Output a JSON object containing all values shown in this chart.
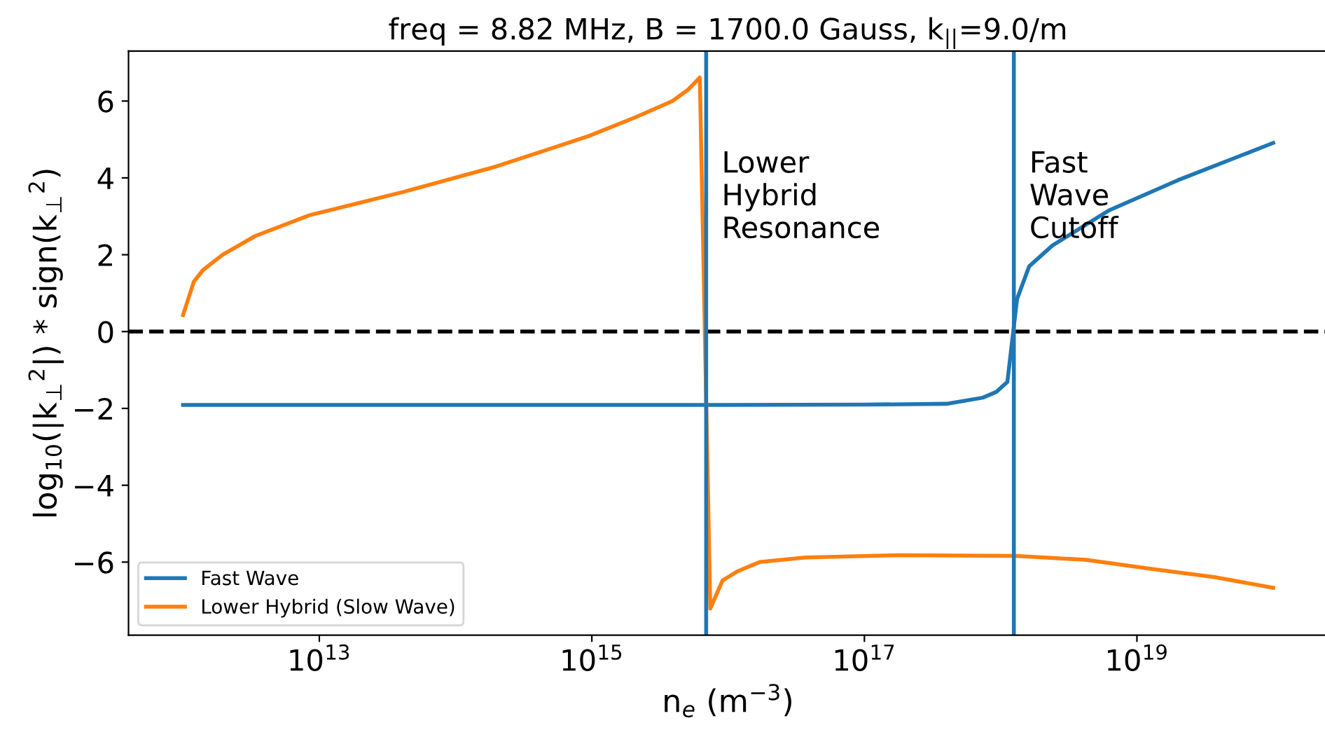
{
  "chart_data": {
    "type": "line",
    "title": "freq = 8.82 MHz, B = 1700.0 Gauss, k$_{||}$=9.0/m",
    "xlabel": "n$_{e}$ (m$^{−3}$)",
    "ylabel": "log$_{10}$(|k$_{⊥}$$^{2}$|) * sign(k$_{⊥}$$^{2}$)",
    "log": "x",
    "xlim": [
      398000000000.0,
      2.51e+20
    ],
    "xticks": [
      {
        "value": 10000000000000.0,
        "label": "10$^{13}$"
      },
      {
        "value": 1000000000000000.0,
        "label": "10$^{15}$"
      },
      {
        "value": 1e+17,
        "label": "10$^{17}$"
      },
      {
        "value": 1e+19,
        "label": "10$^{19}$"
      }
    ],
    "ylim": [
      -7.9,
      7.3
    ],
    "yticks": [
      {
        "value": -6,
        "label": "−6"
      },
      {
        "value": -4,
        "label": "−4"
      },
      {
        "value": -2,
        "label": "−2"
      },
      0,
      2,
      4,
      6
    ],
    "series": [
      {
        "name": "Fast Wave",
        "color": "#1f77b4",
        "x": [
          1000000000000.0,
          100000000000000.0,
          1e+16,
          1e+17,
          2e+17,
          4e+17,
          7.4e+17,
          9.3e+17,
          1.12e+18,
          1.32e+18,
          1.62e+18,
          2.4e+18,
          6.2e+18,
          2e+19,
          1e+20
        ],
        "values": [
          -1.91,
          -1.91,
          -1.91,
          -1.9,
          -1.89,
          -1.88,
          -1.72,
          -1.57,
          -1.31,
          0.85,
          1.7,
          2.24,
          3.15,
          3.94,
          4.91
        ]
      },
      {
        "name": "Lower Hybrid (Slow Wave)",
        "color": "#ff7f0e",
        "x": [
          1000000000000.0,
          1200000000000.0,
          1400000000000.0,
          1950000000000.0,
          3400000000000.0,
          8500000000000.0,
          42000000000000.0,
          200000000000000.0,
          950000000000000.0,
          2100000000000000.0,
          3900000000000000.0,
          5100000000000000.0,
          6200000000000000.0,
          7400000000000000.0,
          9100000000000000.0,
          1.17e+16,
          1.7e+16,
          3.7e+16,
          1.8e+17,
          1.3e+18,
          4.2e+18,
          1.3e+19,
          3.7e+19,
          1e+20
        ],
        "values": [
          0.43,
          1.3,
          1.6,
          2.0,
          2.49,
          3.03,
          3.64,
          4.3,
          5.09,
          5.58,
          6.0,
          6.3,
          6.61,
          -7.21,
          -6.48,
          -6.24,
          -6.0,
          -5.88,
          -5.82,
          -5.84,
          -5.94,
          -6.18,
          -6.39,
          -6.67
        ]
      }
    ],
    "ref_lines": [
      {
        "axis": "y",
        "value": 0,
        "color": "#000000",
        "line_style": "dashed"
      },
      {
        "axis": "x",
        "value": 6900000000000000.0,
        "color": "#1f77b4",
        "label": "Lower\nHybrid\nResonance"
      },
      {
        "axis": "x",
        "value": 1.25e+18,
        "color": "#1f77b4",
        "label": "Fast\nWave\nCutoff"
      }
    ],
    "legend": "lower left",
    "grid": false
  }
}
